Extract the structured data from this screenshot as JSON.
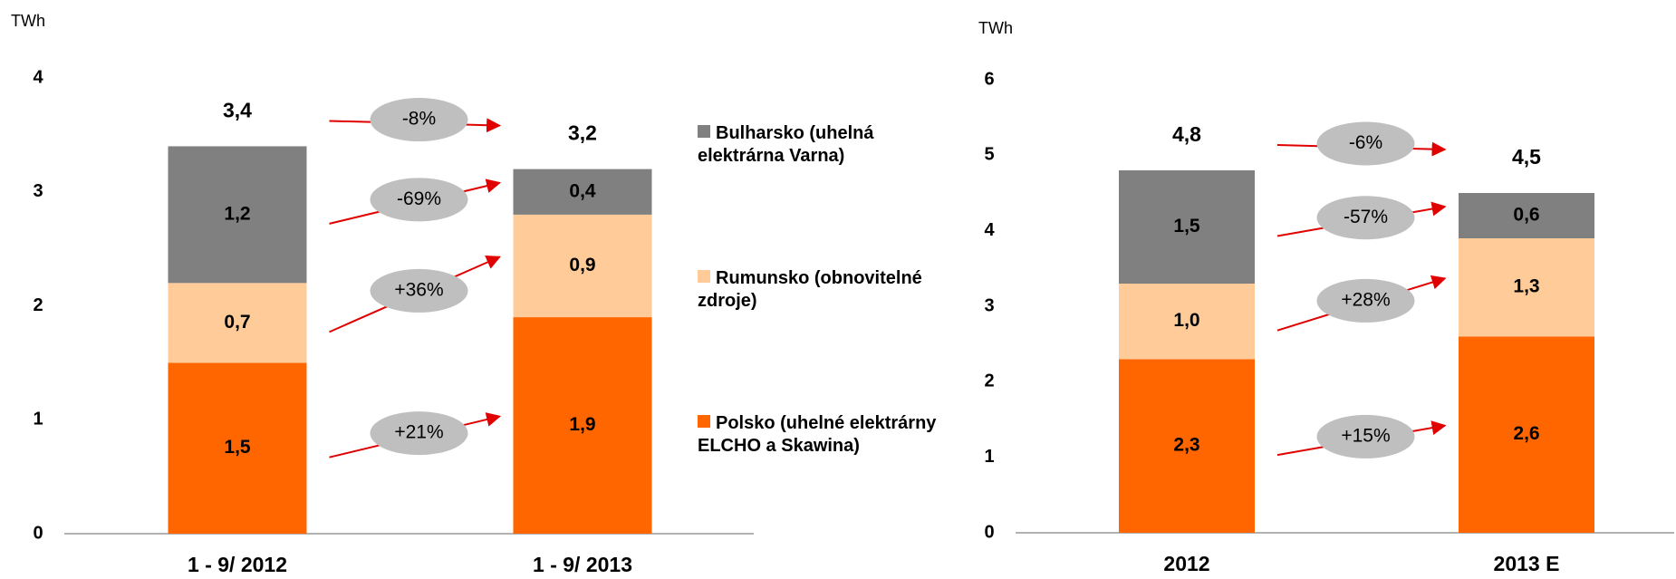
{
  "chart_data": [
    {
      "type": "stacked_bar",
      "y_label": "TWh",
      "categories": [
        "1 - 9/ 2012",
        "1 - 9/ 2013"
      ],
      "ylim": [
        0,
        4
      ],
      "yticks": [
        0,
        1,
        2,
        3,
        4
      ],
      "series": [
        {
          "name": "Polsko (uhelné elektrárny ELCHO a Skawina)",
          "color": "#ff6600",
          "values": [
            1.5,
            1.9
          ],
          "value_labels": [
            "1,5",
            "1,9"
          ]
        },
        {
          "name": "Rumunsko (obnovitelné zdroje)",
          "color": "#ffcc99",
          "values": [
            0.7,
            0.9
          ],
          "value_labels": [
            "0,7",
            "0,9"
          ]
        },
        {
          "name": "Bulharsko (uhelná elektrárna Varna)",
          "color": "#808080",
          "values": [
            1.2,
            0.4
          ],
          "value_labels": [
            "1,2",
            "0,4"
          ]
        }
      ],
      "totals": [
        3.4,
        3.2
      ],
      "total_labels": [
        "3,4",
        "3,2"
      ],
      "changes": [
        "+21%",
        "+36%",
        "-69%",
        "-8%"
      ]
    },
    {
      "type": "stacked_bar",
      "y_label": "TWh",
      "categories": [
        "2012",
        "2013 E"
      ],
      "ylim": [
        0,
        6
      ],
      "yticks": [
        0,
        1,
        2,
        3,
        4,
        5,
        6
      ],
      "series": [
        {
          "color": "#ff6600",
          "values": [
            2.3,
            2.6
          ],
          "value_labels": [
            "2,3",
            "2,6"
          ]
        },
        {
          "color": "#ffcc99",
          "values": [
            1.0,
            1.3
          ],
          "value_labels": [
            "1,0",
            "1,3"
          ]
        },
        {
          "color": "#808080",
          "values": [
            1.5,
            0.6
          ],
          "value_labels": [
            "1,5",
            "0,6"
          ]
        }
      ],
      "totals": [
        4.8,
        4.5
      ],
      "total_labels": [
        "4,8",
        "4,5"
      ],
      "changes": [
        "+15%",
        "+28%",
        "-57%",
        "-6%"
      ]
    }
  ]
}
